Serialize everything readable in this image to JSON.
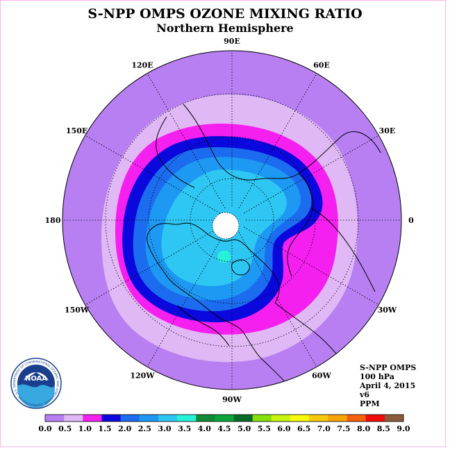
{
  "header": {
    "title": "S-NPP OMPS OZONE MIXING RATIO",
    "subtitle": "Northern Hemisphere"
  },
  "longitude_labels": [
    {
      "name": "lon-90e",
      "text": "90E",
      "deg": 90
    },
    {
      "name": "lon-60e",
      "text": "60E",
      "deg": 60
    },
    {
      "name": "lon-30e",
      "text": "30E",
      "deg": 30
    },
    {
      "name": "lon-0",
      "text": "0",
      "deg": 0
    },
    {
      "name": "lon-30w",
      "text": "30W",
      "deg": -30
    },
    {
      "name": "lon-60w",
      "text": "60W",
      "deg": -60
    },
    {
      "name": "lon-90w",
      "text": "90W",
      "deg": -90
    },
    {
      "name": "lon-120w",
      "text": "120W",
      "deg": -120
    },
    {
      "name": "lon-150w",
      "text": "150W",
      "deg": -150
    },
    {
      "name": "lon-180",
      "text": "180",
      "deg": 180
    },
    {
      "name": "lon-150e",
      "text": "150E",
      "deg": 150
    },
    {
      "name": "lon-120e",
      "text": "120E",
      "deg": 120
    }
  ],
  "info": {
    "instrument": "S-NPP OMPS",
    "level": "100 hPa",
    "date": "April 4, 2015",
    "version": "v6",
    "units": "PPM"
  },
  "colorbar": {
    "colors": [
      "#b77ff2",
      "#e0b8f5",
      "#f51ff0",
      "#0b08de",
      "#1c6cf0",
      "#1d98f3",
      "#2ec6f3",
      "#25f2d8",
      "#0f8a35",
      "#0aa43c",
      "#086a27",
      "#86e010",
      "#c6f50d",
      "#f8f80a",
      "#f8c80a",
      "#f7a50a",
      "#f5600a",
      "#f00a0a",
      "#8b5a3a"
    ],
    "ticks": [
      "0.0",
      "0.5",
      "1.0",
      "1.5",
      "2.0",
      "2.5",
      "3.0",
      "3.5",
      "4.0",
      "4.5",
      "5.0",
      "5.5",
      "6.0",
      "6.5",
      "7.0",
      "7.5",
      "8.0",
      "8.5",
      "9.0"
    ]
  },
  "logo": {
    "text": "NOAA",
    "ring_text": "NATIONAL OCEANIC AND ATMOSPHERIC ADMINISTRATION · U.S. DEPARTMENT OF COMMERCE"
  }
}
